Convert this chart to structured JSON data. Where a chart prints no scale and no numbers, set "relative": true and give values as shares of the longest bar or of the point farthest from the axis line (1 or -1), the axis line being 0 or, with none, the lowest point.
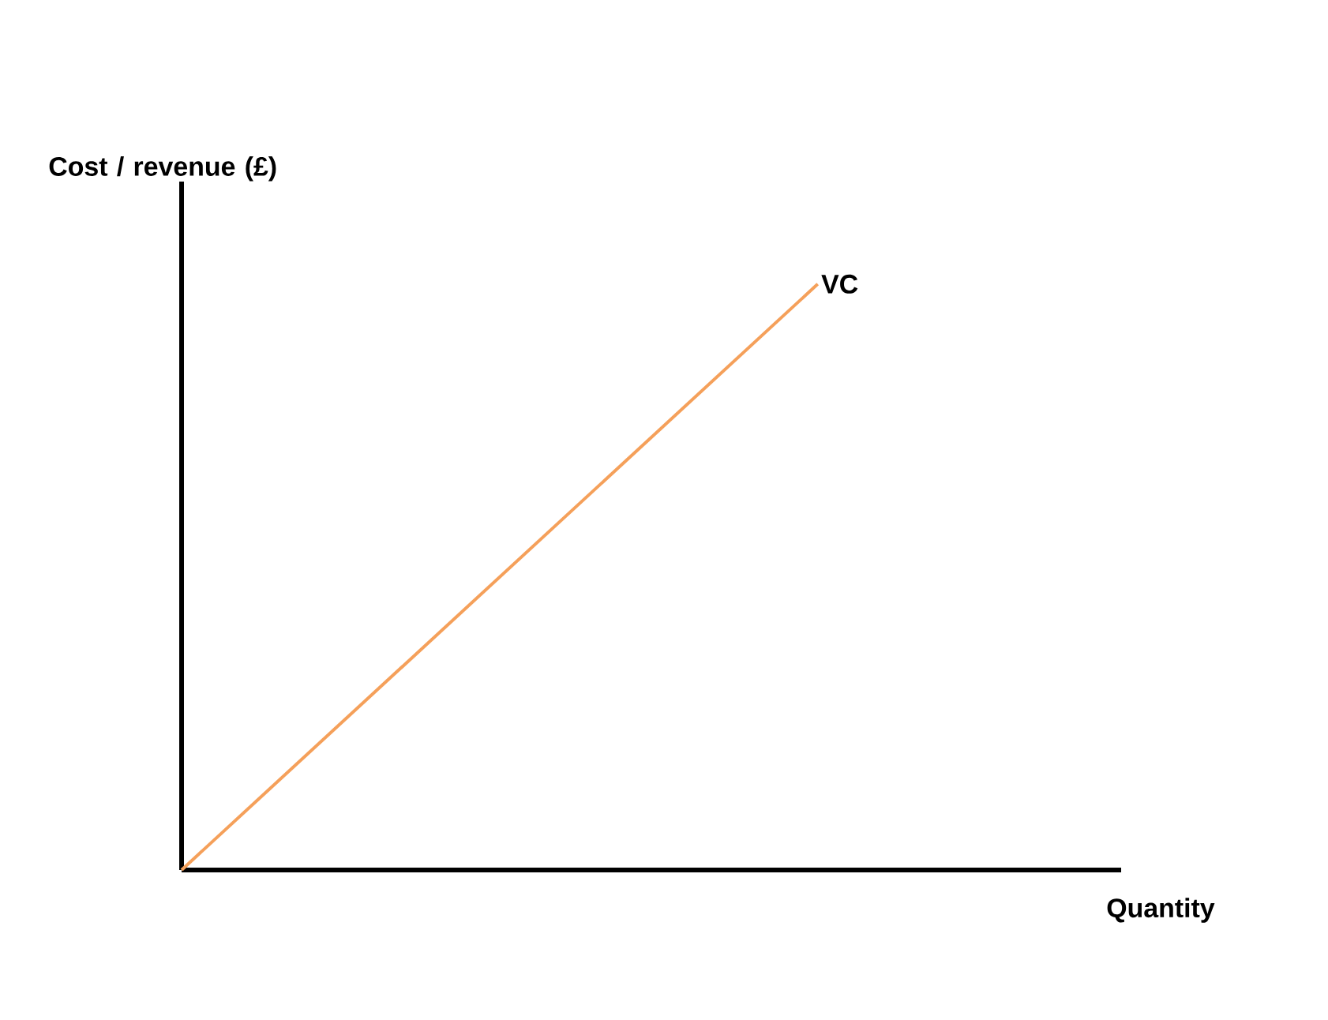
{
  "chart_data": {
    "type": "line",
    "xlabel": "Quantity",
    "ylabel": "Cost / revenue (£)",
    "relative": true,
    "categories": [
      null,
      null
    ],
    "series": [
      {
        "name": "VC",
        "color": "#f5a05a",
        "values": [
          0,
          1
        ]
      }
    ]
  }
}
